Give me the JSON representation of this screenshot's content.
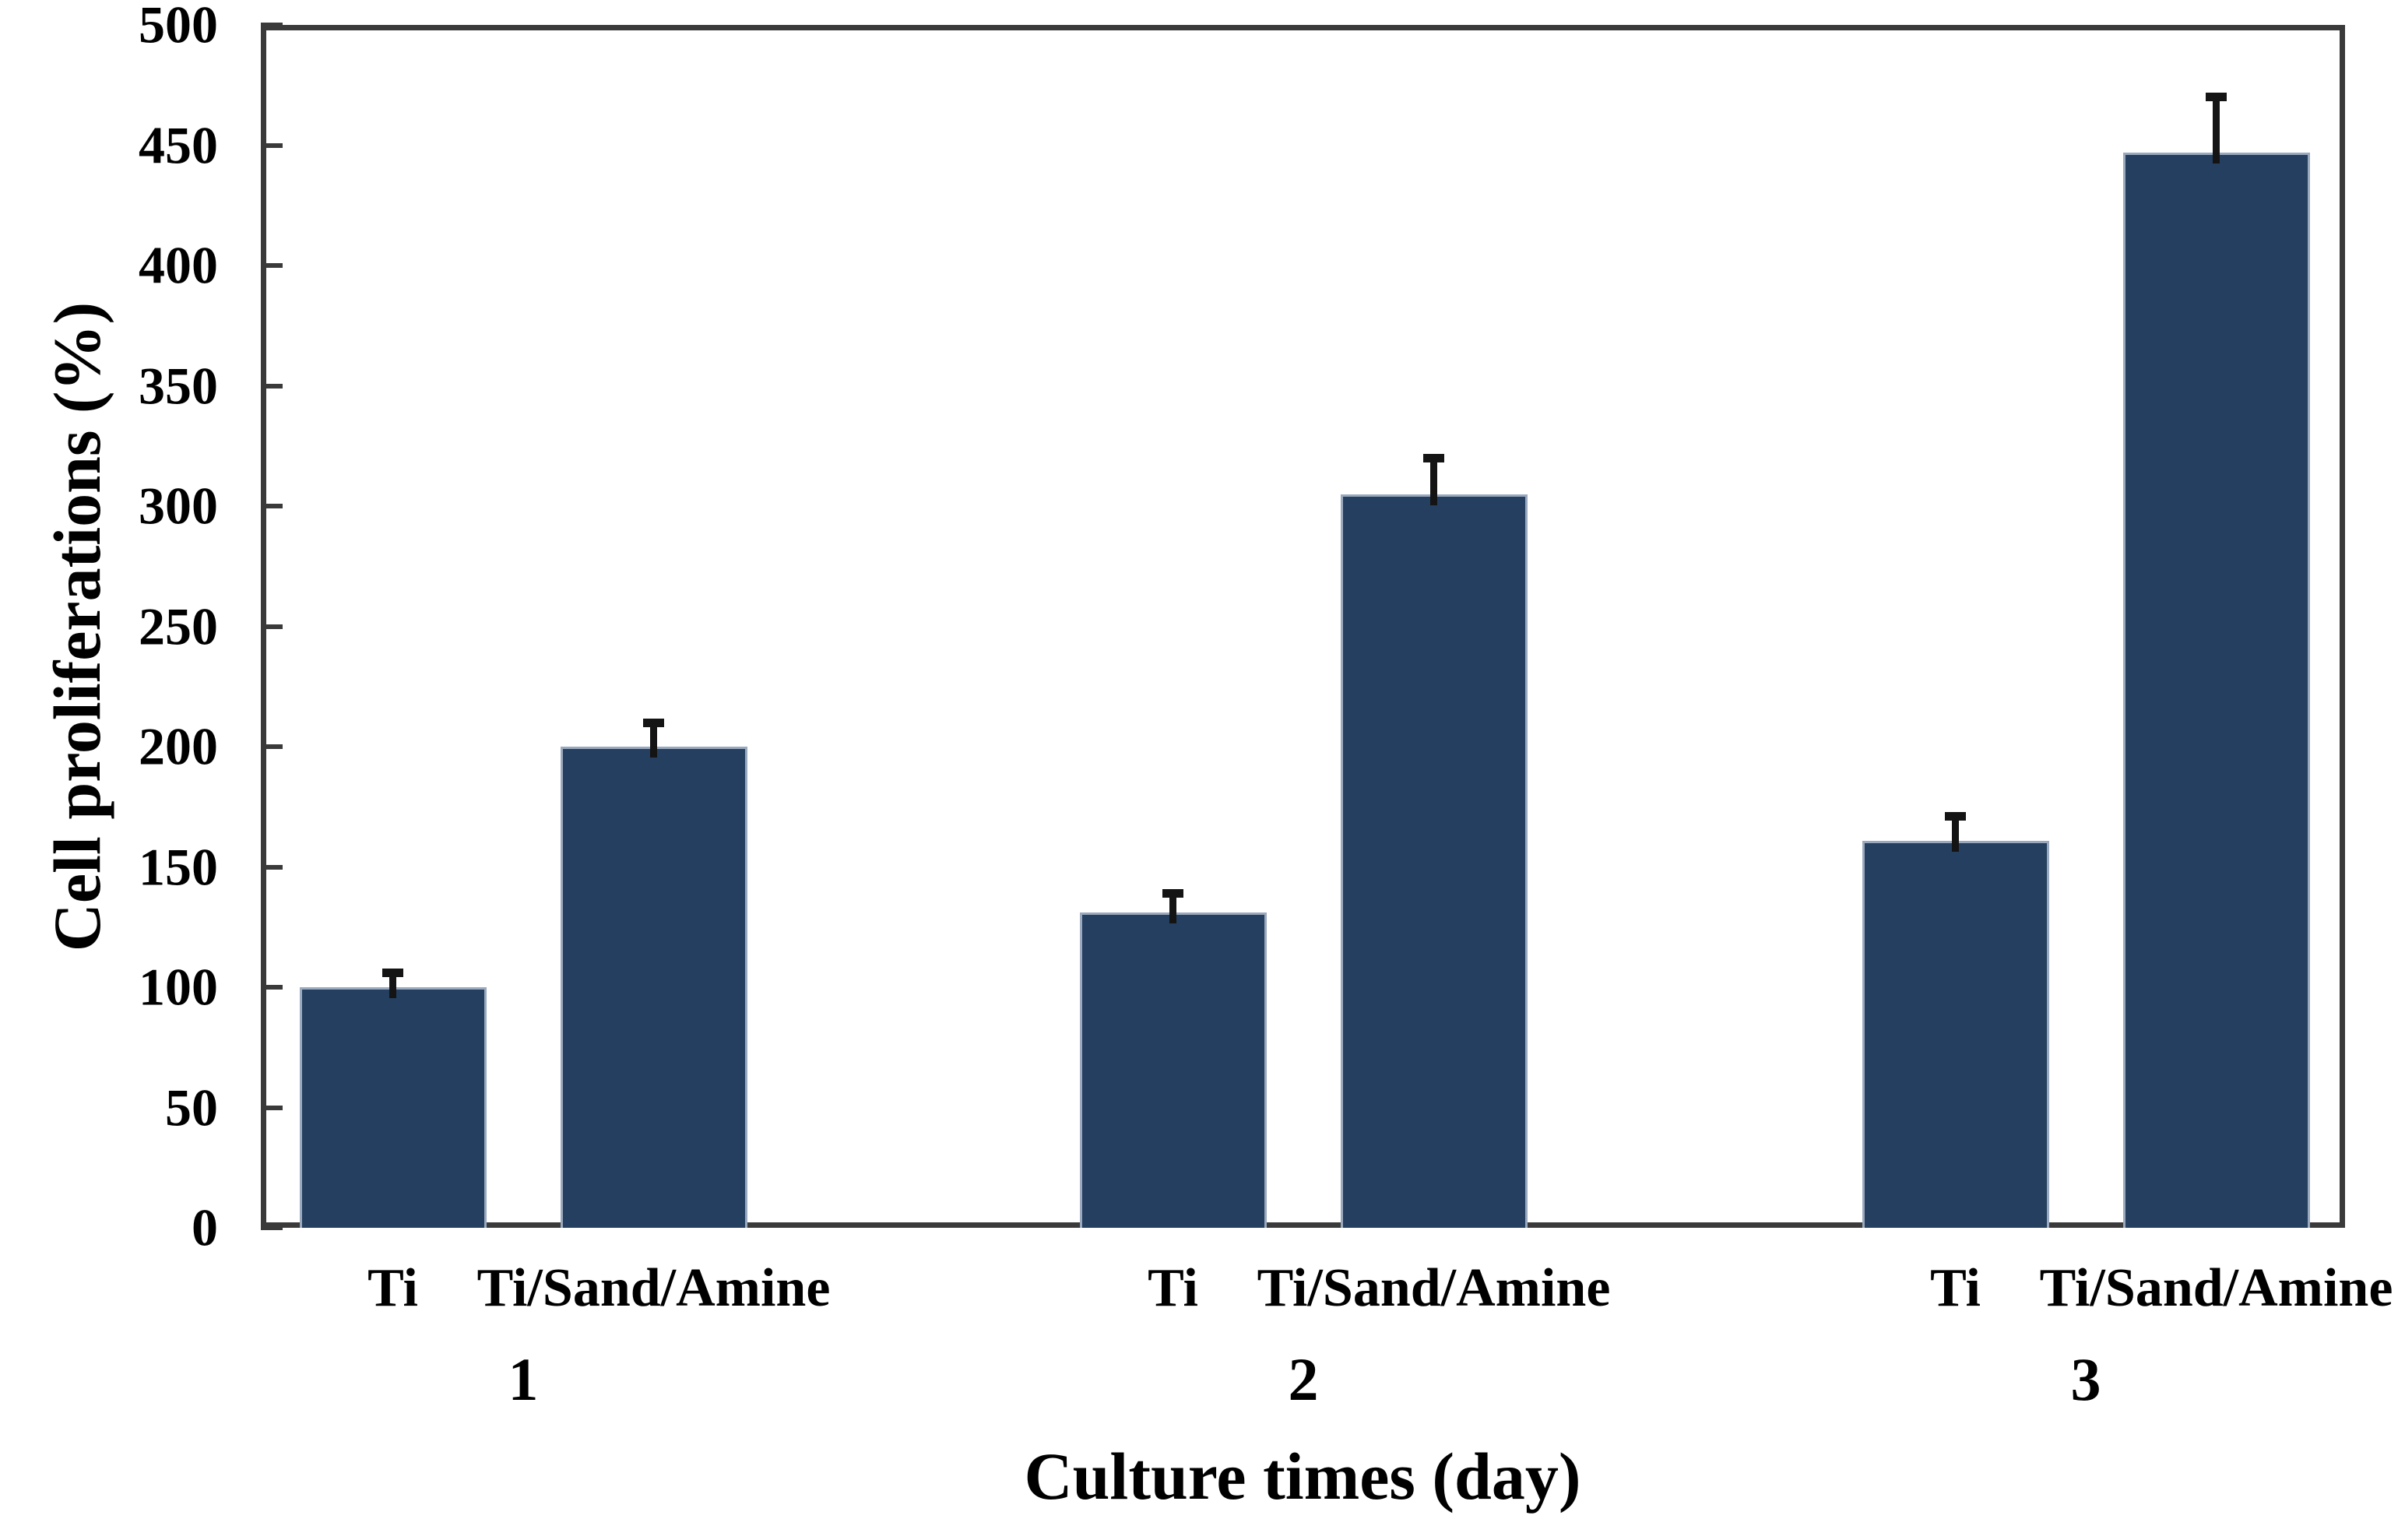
{
  "chart_data": {
    "type": "bar",
    "title": "",
    "xlabel": "Culture times (day)",
    "ylabel": "Cell proliferations (%)",
    "categories": [
      "1",
      "2",
      "3"
    ],
    "bar_sublabels": [
      "Ti",
      "Ti/Sand/Amine"
    ],
    "series": [
      {
        "name": "Ti",
        "values": [
          100,
          131,
          161
        ],
        "errors_plus": [
          6,
          8,
          10
        ]
      },
      {
        "name": "Ti/Sand/Amine",
        "values": [
          200,
          305,
          447
        ],
        "errors_plus": [
          10,
          15,
          23
        ]
      }
    ],
    "ylim": [
      0,
      500
    ],
    "yticks": [
      0,
      50,
      100,
      150,
      200,
      250,
      300,
      350,
      400,
      450,
      500
    ],
    "grid": false,
    "legend": false,
    "error_bars": "upper-only",
    "colors": {
      "bar_fill": "#243F5F",
      "bar_edge": "#9AA9BE",
      "axis_frame": "#3A3A3A",
      "error_bar": "#141414",
      "text": "#000000",
      "background": "#FFFFFF"
    }
  }
}
